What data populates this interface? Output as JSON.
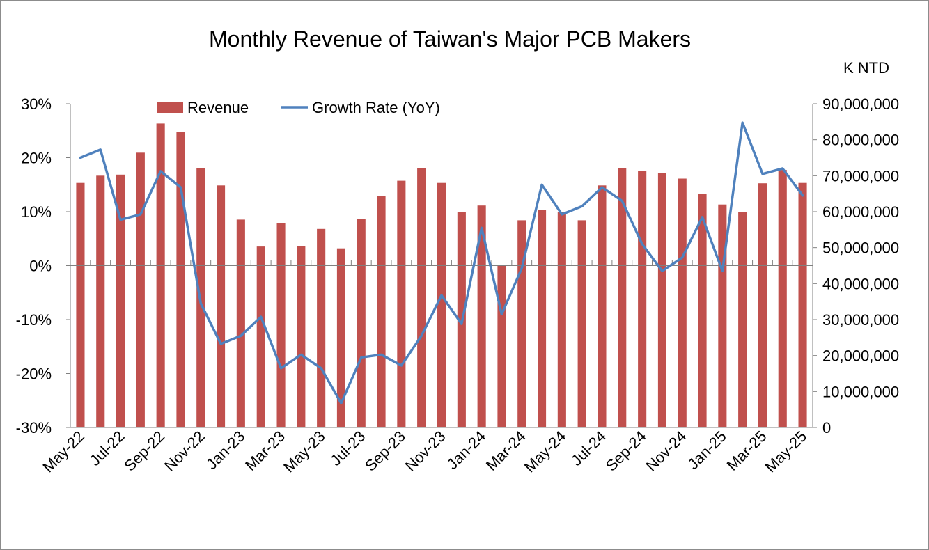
{
  "chart_data": {
    "type": "bar+line",
    "title": "Monthly Revenue of Taiwan's Major PCB Makers",
    "y2_unit_label": "K NTD",
    "colors": {
      "revenue": "#c0504d",
      "growth": "#4f81bd"
    },
    "legend": {
      "placement": "top-left",
      "entries": [
        "Revenue",
        "Growth Rate (YoY)"
      ]
    },
    "categories": [
      "May-22",
      "Jun-22",
      "Jul-22",
      "Aug-22",
      "Sep-22",
      "Oct-22",
      "Nov-22",
      "Dec-22",
      "Jan-23",
      "Feb-23",
      "Mar-23",
      "Apr-23",
      "May-23",
      "Jun-23",
      "Jul-23",
      "Aug-23",
      "Sep-23",
      "Oct-23",
      "Nov-23",
      "Dec-23",
      "Jan-24",
      "Feb-24",
      "Mar-24",
      "Apr-24",
      "May-24",
      "Jun-24",
      "Jul-24",
      "Aug-24",
      "Sep-24",
      "Oct-24",
      "Nov-24",
      "Dec-24",
      "Jan-25",
      "Feb-25",
      "Mar-25",
      "Apr-25",
      "May-25"
    ],
    "x_tick_labels": [
      "May-22",
      "Jul-22",
      "Sep-22",
      "Nov-22",
      "Jan-23",
      "Mar-23",
      "May-23",
      "Jul-23",
      "Sep-23",
      "Nov-23",
      "Jan-24",
      "Mar-24",
      "May-24",
      "Jul-24",
      "Sep-24",
      "Nov-24",
      "Jan-25",
      "Mar-25",
      "May-25"
    ],
    "y_left": {
      "ticks": [
        "30%",
        "20%",
        "10%",
        "0%",
        "-10%",
        "-20%",
        "-30%"
      ],
      "range": [
        -30,
        30
      ]
    },
    "y_right": {
      "ticks": [
        "90,000,000",
        "80,000,000",
        "70,000,000",
        "60,000,000",
        "50,000,000",
        "40,000,000",
        "30,000,000",
        "20,000,000",
        "10,000,000",
        "0"
      ],
      "range": [
        0,
        90000000
      ]
    },
    "series": [
      {
        "name": "Revenue",
        "axis": "right",
        "values": [
          68000000,
          70000000,
          70300000,
          76400000,
          84500000,
          82200000,
          72100000,
          67300000,
          57800000,
          50300000,
          56800000,
          50500000,
          55200000,
          49800000,
          58000000,
          64300000,
          68600000,
          72000000,
          68000000,
          59800000,
          61700000,
          45200000,
          57600000,
          60400000,
          59800000,
          57600000,
          67300000,
          72000000,
          71300000,
          70800000,
          69200000,
          65000000,
          62000000,
          59800000,
          67900000,
          71600000,
          68000000
        ]
      },
      {
        "name": "Growth Rate (YoY)",
        "axis": "left",
        "values": [
          20.0,
          21.5,
          8.5,
          9.5,
          17.5,
          14.5,
          -7.0,
          -14.5,
          -13.0,
          -9.5,
          -19.0,
          -16.5,
          -19.0,
          -25.5,
          -17.0,
          -16.5,
          -18.5,
          -13.0,
          -5.5,
          -10.8,
          7.0,
          -9.0,
          -0.5,
          15.0,
          9.5,
          11.0,
          14.5,
          12.0,
          4.0,
          -1.0,
          1.5,
          9.0,
          -1.0,
          26.5,
          17.0,
          18.0,
          13.0
        ]
      }
    ]
  }
}
